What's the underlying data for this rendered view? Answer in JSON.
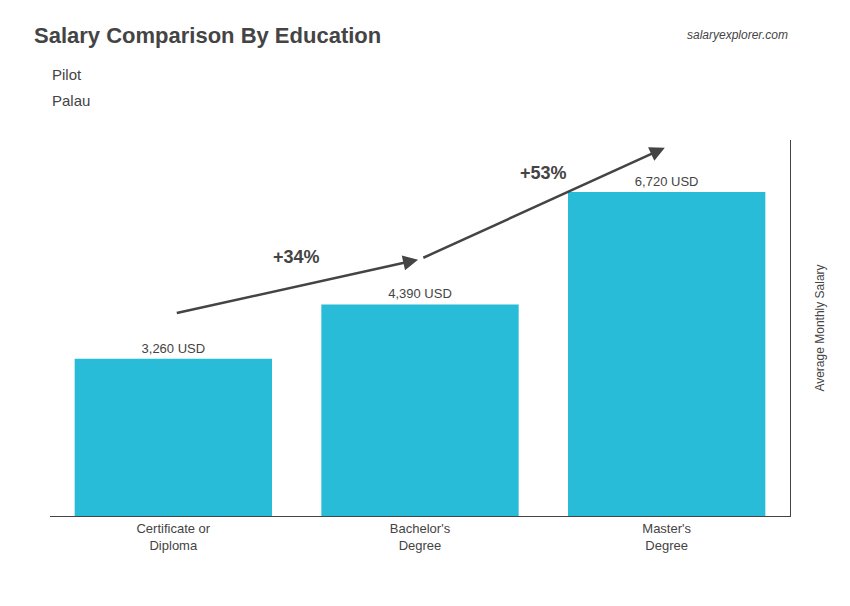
{
  "chart_data": {
    "type": "bar",
    "title": "Salary Comparison By Education",
    "subtitle": [
      "Pilot",
      "Palau"
    ],
    "ylabel": "Average Monthly Salary",
    "categories": [
      "Certificate or\nDiploma",
      "Bachelor's\nDegree",
      "Master's\nDegree"
    ],
    "values": [
      3260,
      4390,
      6720
    ],
    "value_labels": [
      "3,260 USD",
      "4,390 USD",
      "6,720 USD"
    ],
    "data_labels": true,
    "color": "#29BCD8",
    "ylim": [
      0,
      7800
    ],
    "grid": false,
    "tick_labels": "x",
    "annotations": [
      {
        "text": "+34%",
        "from": "Certificate or\nDiploma",
        "to": "Bachelor's\nDegree"
      },
      {
        "text": "+53%",
        "from": "Bachelor's\nDegree",
        "to": "Master's\nDegree"
      },
      {
        "text": "salaryexplorer.com"
      }
    ]
  }
}
